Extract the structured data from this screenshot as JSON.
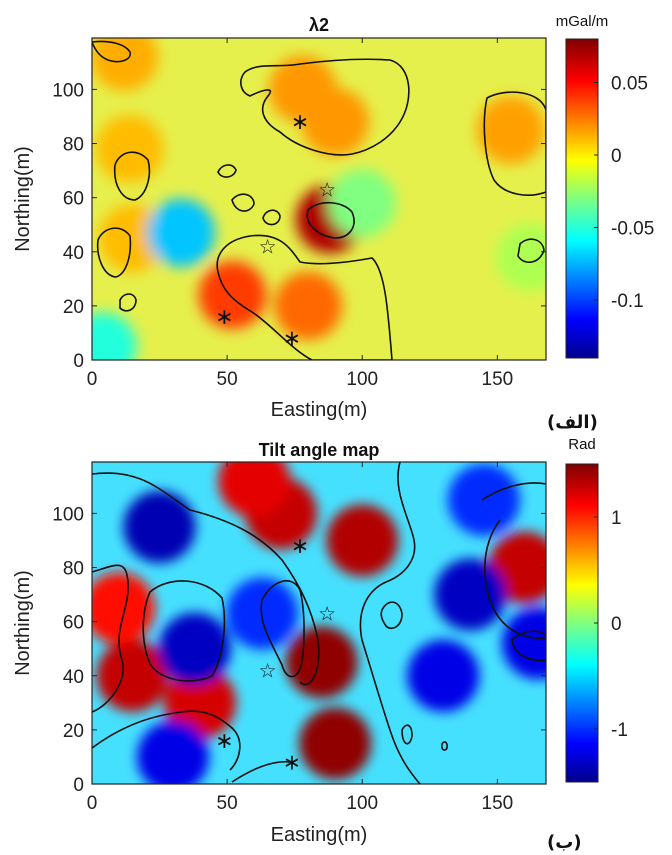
{
  "chart_data": [
    {
      "type": "heatmap",
      "title": "λ2",
      "panel_label": "(الف)",
      "xlabel": "Easting(m)",
      "ylabel": "Northing(m)",
      "xlim": [
        0,
        168
      ],
      "ylim": [
        0,
        119
      ],
      "xticks": [
        0,
        50,
        100,
        150
      ],
      "yticks": [
        0,
        20,
        40,
        60,
        80,
        100
      ],
      "colorbar": {
        "unit": "mGal/m",
        "range": [
          -0.14,
          0.08
        ],
        "ticks": [
          0.05,
          0,
          -0.05,
          -0.1
        ],
        "tick_labels": [
          "0.05",
          "0",
          "-0.05",
          "-0.1"
        ],
        "colormap": "jet"
      },
      "features": [
        {
          "kind": "high",
          "x": 88,
          "y": 52,
          "value": 0.07
        },
        {
          "kind": "high",
          "x": 52,
          "y": 24,
          "value": 0.04
        },
        {
          "kind": "high",
          "x": 80,
          "y": 20,
          "value": 0.03
        },
        {
          "kind": "high",
          "x": 78,
          "y": 100,
          "value": 0.02
        },
        {
          "kind": "high",
          "x": 90,
          "y": 88,
          "value": 0.02
        },
        {
          "kind": "high",
          "x": 155,
          "y": 85,
          "value": 0.018
        },
        {
          "kind": "high",
          "x": 12,
          "y": 112,
          "value": 0.015
        },
        {
          "kind": "high",
          "x": 15,
          "y": 45,
          "value": 0.012
        },
        {
          "kind": "high",
          "x": 14,
          "y": 78,
          "value": 0.012
        },
        {
          "kind": "low",
          "x": 33,
          "y": 47,
          "value": -0.07
        },
        {
          "kind": "low",
          "x": 4,
          "y": 5,
          "value": -0.05
        },
        {
          "kind": "low",
          "x": 100,
          "y": 58,
          "value": -0.03
        },
        {
          "kind": "low",
          "x": 162,
          "y": 38,
          "value": -0.02
        }
      ],
      "markers": [
        {
          "symbol": "asterisk",
          "x": 77,
          "y": 89
        },
        {
          "symbol": "asterisk",
          "x": 49,
          "y": 17
        },
        {
          "symbol": "asterisk",
          "x": 74,
          "y": 9
        },
        {
          "symbol": "star",
          "x": 87,
          "y": 63
        },
        {
          "symbol": "star",
          "x": 65,
          "y": 42
        }
      ]
    },
    {
      "type": "heatmap",
      "title": "Tilt angle map",
      "panel_label": "(ب)",
      "xlabel": "Easting(m)",
      "ylabel": "Northing(m)",
      "xlim": [
        0,
        168
      ],
      "ylim": [
        0,
        119
      ],
      "xticks": [
        0,
        50,
        100,
        150
      ],
      "yticks": [
        0,
        20,
        40,
        60,
        80,
        100
      ],
      "colorbar": {
        "unit": "Rad",
        "range": [
          -1.5,
          1.5
        ],
        "ticks": [
          1,
          0,
          -1
        ],
        "tick_labels": [
          "1",
          "0",
          "-1"
        ],
        "colormap": "jet"
      },
      "features": [
        {
          "kind": "high",
          "x": 85,
          "y": 45,
          "value": 1.45
        },
        {
          "kind": "high",
          "x": 90,
          "y": 15,
          "value": 1.45
        },
        {
          "kind": "high",
          "x": 100,
          "y": 90,
          "value": 1.35
        },
        {
          "kind": "high",
          "x": 70,
          "y": 100,
          "value": 1.3
        },
        {
          "kind": "high",
          "x": 15,
          "y": 40,
          "value": 1.3
        },
        {
          "kind": "high",
          "x": 40,
          "y": 30,
          "value": 1.25
        },
        {
          "kind": "high",
          "x": 60,
          "y": 112,
          "value": 1.2
        },
        {
          "kind": "high",
          "x": 160,
          "y": 80,
          "value": 1.3
        },
        {
          "kind": "high",
          "x": 10,
          "y": 65,
          "value": 1.1
        },
        {
          "kind": "low",
          "x": 25,
          "y": 95,
          "value": -1.35
        },
        {
          "kind": "low",
          "x": 38,
          "y": 50,
          "value": -1.3
        },
        {
          "kind": "low",
          "x": 140,
          "y": 70,
          "value": -1.3
        },
        {
          "kind": "low",
          "x": 130,
          "y": 40,
          "value": -1.2
        },
        {
          "kind": "low",
          "x": 30,
          "y": 10,
          "value": -1.2
        },
        {
          "kind": "low",
          "x": 165,
          "y": 52,
          "value": -1.2
        },
        {
          "kind": "low",
          "x": 63,
          "y": 63,
          "value": -1.0
        },
        {
          "kind": "low",
          "x": 145,
          "y": 105,
          "value": -1.0
        }
      ],
      "markers": [
        {
          "symbol": "asterisk",
          "x": 77,
          "y": 89
        },
        {
          "symbol": "asterisk",
          "x": 49,
          "y": 17
        },
        {
          "symbol": "asterisk",
          "x": 74,
          "y": 9
        },
        {
          "symbol": "star",
          "x": 87,
          "y": 63
        },
        {
          "symbol": "star",
          "x": 65,
          "y": 42
        }
      ]
    }
  ]
}
